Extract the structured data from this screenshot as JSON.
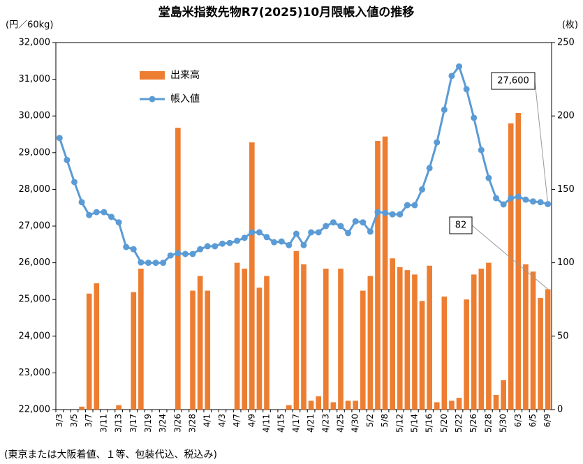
{
  "chart_data": {
    "type": "combo",
    "title": "堂島米指数先物R7(2025)10月限帳入値の推移",
    "y_label": "(円／60kg)",
    "y2_label": "(枚)",
    "footnote": "(東京または大阪着値、１等、包装代込、税込み)",
    "legend": "upper left",
    "grid": false,
    "categories": [
      "3/3",
      null,
      "3/5",
      null,
      "3/7",
      null,
      "3/11",
      null,
      "3/13",
      null,
      "3/17",
      null,
      "3/19",
      null,
      "3/24",
      null,
      "3/26",
      null,
      "3/28",
      null,
      "4/1",
      null,
      "4/3",
      null,
      "4/7",
      null,
      "4/9",
      null,
      "4/11",
      null,
      "4/15",
      null,
      "4/17",
      null,
      "4/21",
      null,
      "4/23",
      null,
      "4/25",
      null,
      "4/30",
      null,
      "5/2",
      null,
      "5/8",
      null,
      "5/12",
      null,
      "5/14",
      null,
      "5/16",
      null,
      "5/20",
      null,
      "5/22",
      null,
      "5/26",
      null,
      "5/28",
      null,
      "5/30",
      null,
      "6/3",
      null,
      "6/5",
      null,
      "6/9"
    ],
    "series": [
      {
        "name": "出来高",
        "type": "bar",
        "axis": "y2",
        "color": "#ed7d31",
        "values": [
          0,
          0,
          0,
          2,
          79,
          86,
          0,
          0,
          3,
          0,
          80,
          96,
          0,
          0,
          0,
          0,
          192,
          0,
          81,
          91,
          81,
          0,
          0,
          0,
          100,
          96,
          182,
          83,
          91,
          0,
          0,
          3,
          108,
          99,
          6,
          9,
          96,
          5,
          96,
          6,
          6,
          81,
          91,
          183,
          186,
          103,
          97,
          95,
          92,
          74,
          98,
          5,
          77,
          6,
          8,
          75,
          92,
          96,
          100,
          10,
          20,
          195,
          202,
          99,
          94,
          76,
          82
        ]
      },
      {
        "name": "帳入値",
        "type": "line",
        "axis": "y",
        "color": "#5b9bd5",
        "values": [
          29400,
          28800,
          28200,
          27650,
          27300,
          27380,
          27380,
          27250,
          27100,
          26430,
          26370,
          26010,
          26000,
          26000,
          26000,
          26200,
          26260,
          26240,
          26240,
          26370,
          26450,
          26450,
          26520,
          26540,
          26600,
          26680,
          26830,
          26830,
          26700,
          26560,
          26580,
          26480,
          26790,
          26480,
          26830,
          26830,
          27000,
          27100,
          27000,
          26810,
          27130,
          27100,
          26850,
          27380,
          27360,
          27320,
          27320,
          27570,
          27570,
          28000,
          28580,
          29280,
          30170,
          31090,
          31350,
          30730,
          29950,
          29070,
          28310,
          27760,
          27590,
          27760,
          27800,
          27720,
          27670,
          27650,
          27600
        ],
        "value_labels": [
          null,
          null,
          null,
          null,
          null,
          null,
          null,
          null,
          null,
          null,
          null,
          null,
          null,
          null,
          null,
          null,
          null,
          null,
          null,
          null,
          null,
          null,
          null,
          null,
          null,
          null,
          null,
          null,
          null,
          null,
          null,
          null,
          null,
          null,
          null,
          null,
          null,
          null,
          null,
          null,
          null,
          null,
          null,
          null,
          null,
          null,
          null,
          null,
          null,
          null,
          null,
          null,
          null,
          null,
          null,
          null,
          null,
          null,
          null,
          null,
          null,
          null,
          null,
          null,
          null,
          null,
          "27,600"
        ]
      }
    ],
    "ylim": [
      22000,
      32000
    ],
    "yticks": [
      {
        "value": 22000,
        "label": "22,000"
      },
      {
        "value": 23000,
        "label": "23,000"
      },
      {
        "value": 24000,
        "label": "24,000"
      },
      {
        "value": 25000,
        "label": "25,000"
      },
      {
        "value": 26000,
        "label": "26,000"
      },
      {
        "value": 27000,
        "label": "27,000"
      },
      {
        "value": 28000,
        "label": "28,000"
      },
      {
        "value": 29000,
        "label": "29,000"
      },
      {
        "value": 30000,
        "label": "30,000"
      },
      {
        "value": 31000,
        "label": "31,000"
      },
      {
        "value": 32000,
        "label": "32,000"
      }
    ],
    "y2lim": [
      0,
      250
    ],
    "y2ticks": [
      0,
      50,
      100,
      150,
      200,
      250
    ]
  }
}
